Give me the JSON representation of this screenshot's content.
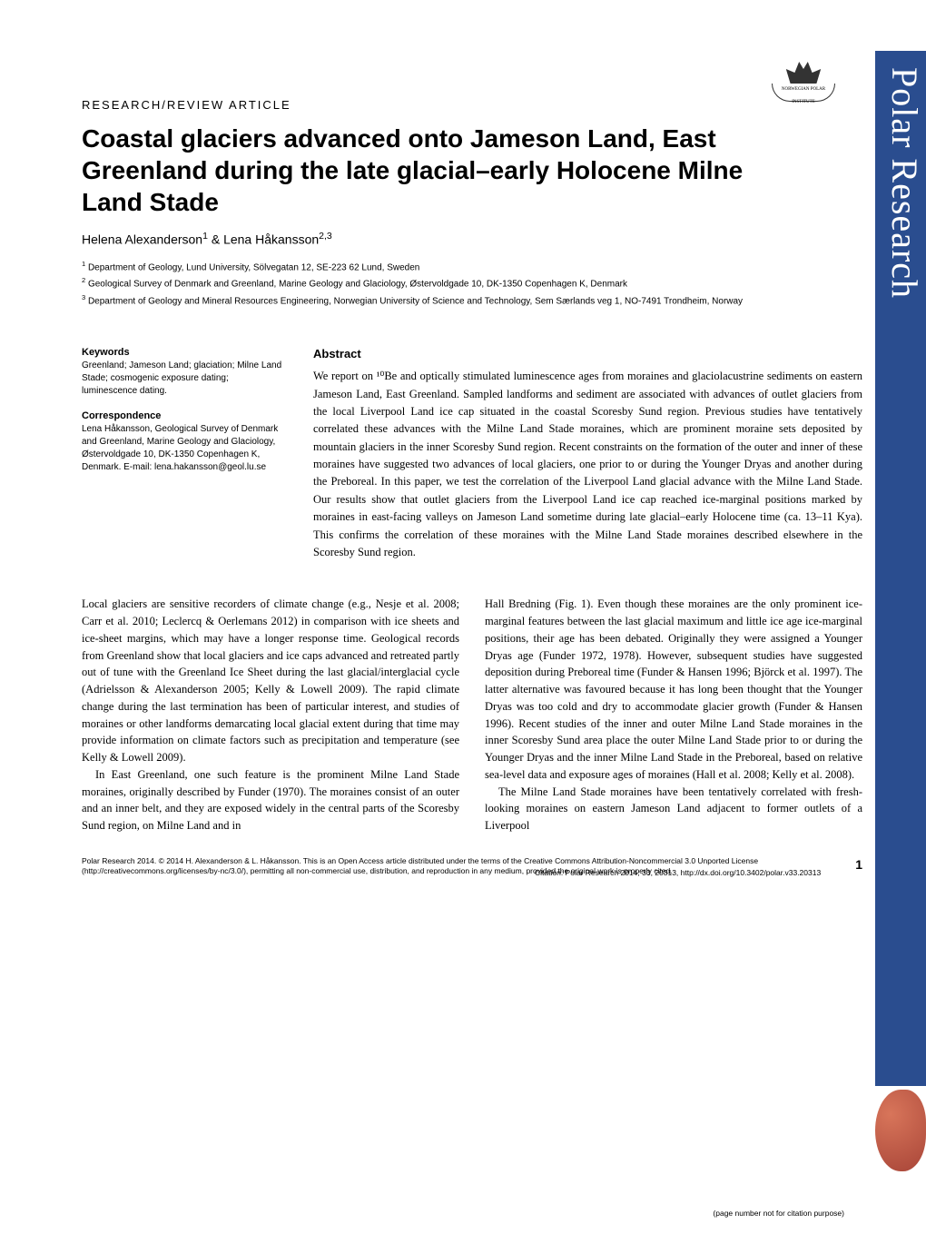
{
  "journal": {
    "sidebar_name": "Polar Research",
    "logo_text": "NORWEGIAN POLAR INSTITUTE"
  },
  "article": {
    "type": "RESEARCH/REVIEW ARTICLE",
    "title": "Coastal glaciers advanced onto Jameson Land, East Greenland during the late glacial–early Holocene Milne Land Stade",
    "authors_html": "Helena Alexanderson<sup>1</sup> & Lena Håkansson<sup>2,3</sup>",
    "affiliations": [
      "<sup>1</sup> Department of Geology, Lund University, Sölvegatan 12, SE-223 62 Lund, Sweden",
      "<sup>2</sup> Geological Survey of Denmark and Greenland, Marine Geology and Glaciology, Østervoldgade 10, DK-1350 Copenhagen K, Denmark",
      "<sup>3</sup> Department of Geology and Mineral Resources Engineering, Norwegian University of Science and Technology, Sem Særlands veg 1, NO-7491 Trondheim, Norway"
    ]
  },
  "meta": {
    "keywords_heading": "Keywords",
    "keywords_text": "Greenland; Jameson Land; glaciation; Milne Land Stade; cosmogenic exposure dating; luminescence dating.",
    "correspondence_heading": "Correspondence",
    "correspondence_text": "Lena Håkansson, Geological Survey of Denmark and Greenland, Marine Geology and Glaciology, Østervoldgade 10, DK-1350 Copenhagen K, Denmark. E-mail: lena.hakansson@geol.lu.se"
  },
  "abstract": {
    "heading": "Abstract",
    "text": "We report on ¹⁰Be and optically stimulated luminescence ages from moraines and glaciolacustrine sediments on eastern Jameson Land, East Greenland. Sampled landforms and sediment are associated with advances of outlet glaciers from the local Liverpool Land ice cap situated in the coastal Scoresby Sund region. Previous studies have tentatively correlated these advances with the Milne Land Stade moraines, which are prominent moraine sets deposited by mountain glaciers in the inner Scoresby Sund region. Recent constraints on the formation of the outer and inner of these moraines have suggested two advances of local glaciers, one prior to or during the Younger Dryas and another during the Preboreal. In this paper, we test the correlation of the Liverpool Land glacial advance with the Milne Land Stade. Our results show that outlet glaciers from the Liverpool Land ice cap reached ice-marginal positions marked by moraines in east-facing valleys on Jameson Land sometime during late glacial–early Holocene time (ca. 13–11 Kya). This confirms the correlation of these moraines with the Milne Land Stade moraines described elsewhere in the Scoresby Sund region."
  },
  "body": {
    "col1": [
      "Local glaciers are sensitive recorders of climate change (e.g., Nesje et al. 2008; Carr et al. 2010; Leclercq & Oerlemans 2012) in comparison with ice sheets and ice-sheet margins, which may have a longer response time. Geological records from Greenland show that local glaciers and ice caps advanced and retreated partly out of tune with the Greenland Ice Sheet during the last glacial/interglacial cycle (Adrielsson & Alexanderson 2005; Kelly & Lowell 2009). The rapid climate change during the last termination has been of particular interest, and studies of moraines or other landforms demarcating local glacial extent during that time may provide information on climate factors such as precipitation and temperature (see Kelly & Lowell 2009).",
      "In East Greenland, one such feature is the prominent Milne Land Stade moraines, originally described by Funder (1970). The moraines consist of an outer and an inner belt, and they are exposed widely in the central parts of the Scoresby Sund region, on Milne Land and in"
    ],
    "col2": [
      "Hall Bredning (Fig. 1). Even though these moraines are the only prominent ice-marginal features between the last glacial maximum and little ice age ice-marginal positions, their age has been debated. Originally they were assigned a Younger Dryas age (Funder 1972, 1978). However, subsequent studies have suggested deposition during Preboreal time (Funder & Hansen 1996; Björck et al. 1997). The latter alternative was favoured because it has long been thought that the Younger Dryas was too cold and dry to accommodate glacier growth (Funder & Hansen 1996). Recent studies of the inner and outer Milne Land Stade moraines in the inner Scoresby Sund area place the outer Milne Land Stade prior to or during the Younger Dryas and the inner Milne Land Stade in the Preboreal, based on relative sea-level data and exposure ages of moraines (Hall et al. 2008; Kelly et al. 2008).",
      "The Milne Land Stade moraines have been tentatively correlated with fresh-looking moraines on eastern Jameson Land adjacent to former outlets of a Liverpool"
    ]
  },
  "footer": {
    "copyright_line": "Polar Research 2014. © 2014 H. Alexanderson & L. Håkansson. This is an Open Access article distributed under the terms of the Creative Commons Attribution-Noncommercial 3.0 Unported License (http://creativecommons.org/licenses/by-nc/3.0/), permitting all non-commercial use, distribution, and reproduction in any medium, provided the original work is properly cited.",
    "citation_line": "Citation: Polar Research 2014, 33, 20313, http://dx.doi.org/10.3402/polar.v33.20313",
    "page_number": "1",
    "page_note": "(page number not for citation purpose)"
  },
  "colors": {
    "sidebar_bg": "#2a4d8f",
    "sidebar_text": "#ffffff",
    "text": "#000000",
    "background": "#ffffff"
  },
  "typography": {
    "title_fontsize": 28,
    "body_fontsize": 12.5,
    "meta_fontsize": 10,
    "footer_fontsize": 8.5,
    "article_type_fontsize": 13,
    "abstract_heading_fontsize": 13
  }
}
